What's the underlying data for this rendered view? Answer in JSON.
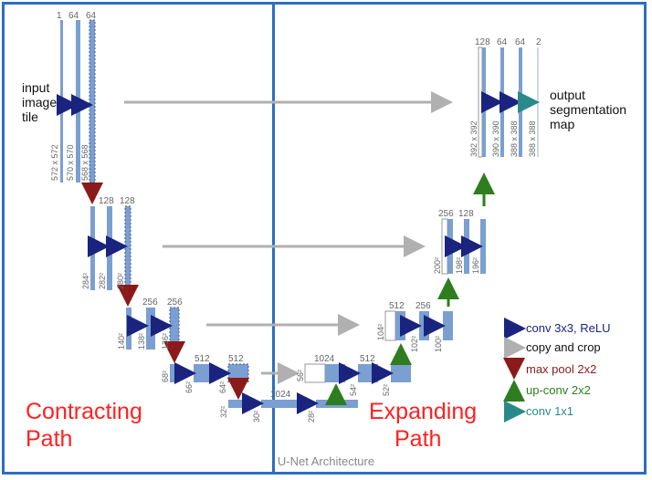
{
  "title": "U-Net Architecture",
  "left_section": [
    "Contracting",
    "Path"
  ],
  "right_section": [
    "Expanding",
    "Path"
  ],
  "input_label": [
    "input",
    "image",
    "tile"
  ],
  "output_label": [
    "output",
    "segmentation",
    "map"
  ],
  "legend": [
    {
      "text": "conv 3x3, ReLU",
      "color": "#1a237e",
      "icon": "right-arrow"
    },
    {
      "text": "copy and crop",
      "color": "#8a8a8a",
      "icon": "gray-right-arrow"
    },
    {
      "text": "max pool 2x2",
      "color": "#8b1a1a",
      "icon": "down-arrow"
    },
    {
      "text": "up-conv 2x2",
      "color": "#2e7d1e",
      "icon": "up-arrow"
    },
    {
      "text": "conv 1x1",
      "color": "#2a8a8a",
      "icon": "teal-right-arrow"
    }
  ],
  "channels": {
    "level1_enc": [
      "1",
      "64",
      "64"
    ],
    "level2_enc": [
      "128",
      "128"
    ],
    "level3_enc": [
      "256",
      "256"
    ],
    "level4_enc": [
      "512",
      "512"
    ],
    "bottom": [
      "1024"
    ],
    "level4_dec": [
      "1024",
      "512"
    ],
    "level3_dec": [
      "512",
      "256"
    ],
    "level2_dec": [
      "256",
      "128"
    ],
    "level1_dec": [
      "128",
      "64",
      "64",
      "2"
    ]
  },
  "sizes": {
    "level1_enc": [
      "572 x 572",
      "570 x 570",
      "568 x 568"
    ],
    "level2_enc": [
      "284²",
      "282²",
      "280²"
    ],
    "level3_enc": [
      "140²",
      "138²",
      "136²"
    ],
    "level4_enc": [
      "68²",
      "66²",
      "64²"
    ],
    "bottom": [
      "32²",
      "30²",
      "28²"
    ],
    "level4_dec": [
      "56²",
      "54²",
      "52²"
    ],
    "level3_dec": [
      "104²",
      "102²",
      "100²"
    ],
    "level2_dec": [
      "200²",
      "198²",
      "196²"
    ],
    "level1_dec": [
      "392 x 392",
      "390 x 390",
      "388 x 388",
      "388 x 388"
    ]
  },
  "colors": {
    "frame": "#2c6fbf",
    "block": "#7b9fd1",
    "section_label": "#ff2020"
  }
}
